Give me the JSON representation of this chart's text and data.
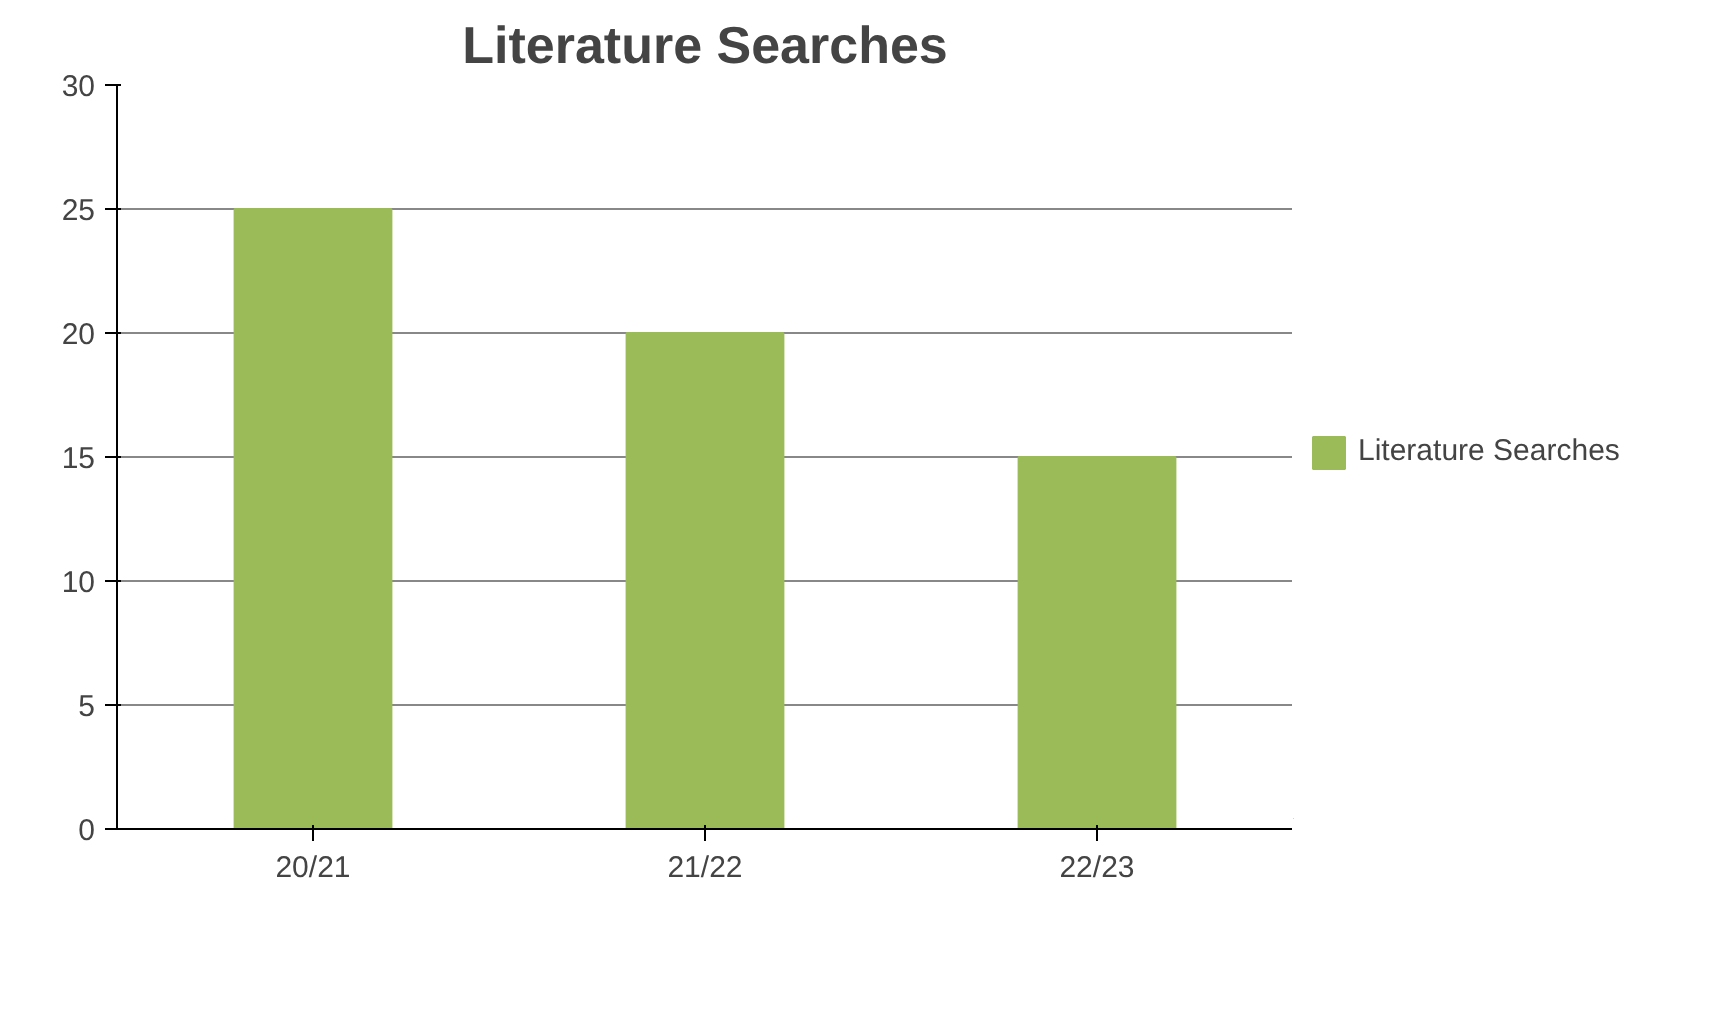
{
  "chart_data": {
    "type": "bar",
    "title": "Literature Searches",
    "categories": [
      "20/21",
      "21/22",
      "22/23"
    ],
    "series": [
      {
        "name": "Literature Searches",
        "color": "#9bbb59",
        "values": [
          25,
          20,
          15
        ]
      }
    ],
    "ylim": [
      0,
      30
    ],
    "yticks": [
      0,
      5,
      10,
      15,
      20,
      25,
      30
    ],
    "grid": "y",
    "legend": "right"
  }
}
